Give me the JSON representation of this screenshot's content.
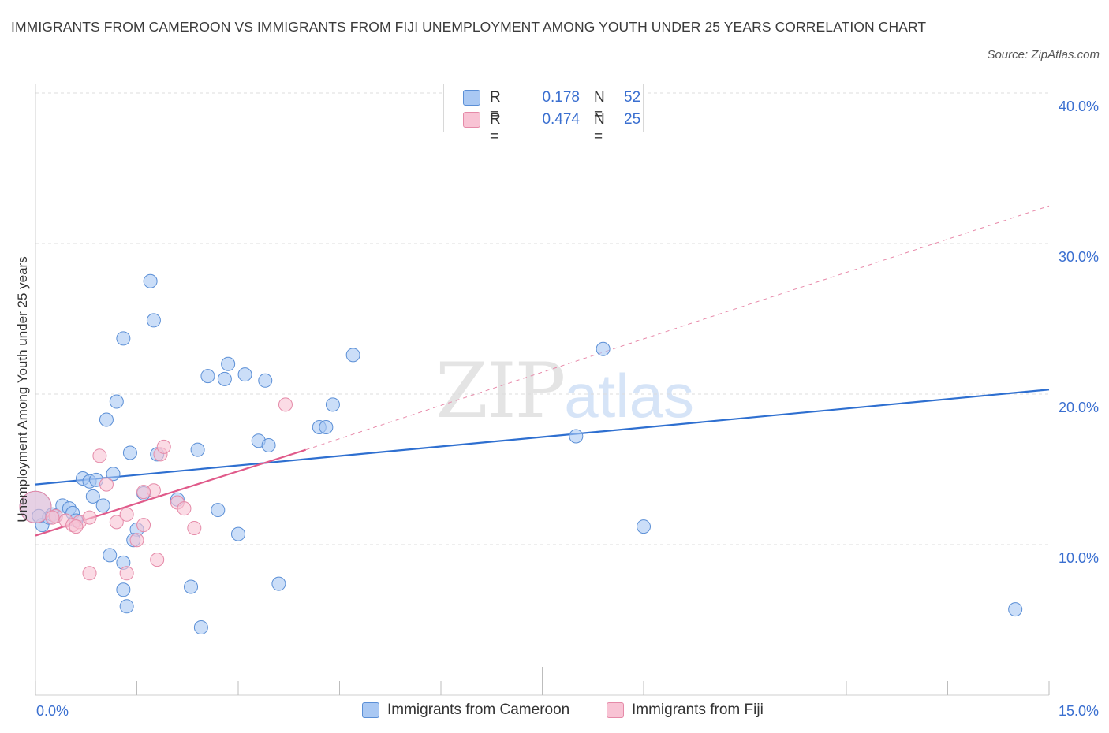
{
  "title": "IMMIGRANTS FROM CAMEROON VS IMMIGRANTS FROM FIJI UNEMPLOYMENT AMONG YOUTH UNDER 25 YEARS CORRELATION CHART",
  "source": "Source: ZipAtlas.com",
  "watermark": {
    "zip": "ZIP",
    "atlas": "atlas"
  },
  "legend": {
    "rows": [
      {
        "r_label": "R =",
        "r_value": "0.178",
        "n_label": "N =",
        "n_value": "52",
        "color": "#a9c8f3",
        "border": "#5b8fd6"
      },
      {
        "r_label": "R =",
        "r_value": "0.474",
        "n_label": "N =",
        "n_value": "25",
        "color": "#f8c3d4",
        "border": "#e58aa8"
      }
    ]
  },
  "bottom_legend": [
    "Immigrants from Cameroon",
    "Immigrants from Fiji"
  ],
  "chart_data": {
    "type": "scatter",
    "title": "IMMIGRANTS FROM CAMEROON VS IMMIGRANTS FROM FIJI UNEMPLOYMENT AMONG YOUTH UNDER 25 YEARS CORRELATION CHART",
    "xlabel": "",
    "ylabel": "Unemployment Among Youth under 25 years",
    "xlim": [
      0,
      15
    ],
    "ylim": [
      0,
      40
    ],
    "x_tick_labels": [
      "0.0%",
      "15.0%"
    ],
    "y_tick_labels": [
      "10.0%",
      "20.0%",
      "30.0%",
      "40.0%"
    ],
    "y_ticks": [
      10,
      20,
      30,
      40
    ],
    "grid": true,
    "series": [
      {
        "name": "Immigrants from Cameroon",
        "color": "#a9c8f3",
        "stroke": "#5b8fd6",
        "trend": {
          "x": [
            0,
            15
          ],
          "y": [
            14.0,
            20.3
          ],
          "color": "#2e6fd0"
        },
        "points": [
          [
            0.0,
            12.5
          ],
          [
            0.1,
            11.3
          ],
          [
            0.2,
            11.8
          ],
          [
            0.25,
            12.0
          ],
          [
            0.3,
            11.9
          ],
          [
            0.4,
            12.6
          ],
          [
            0.5,
            12.4
          ],
          [
            0.55,
            12.1
          ],
          [
            0.6,
            11.6
          ],
          [
            0.7,
            14.4
          ],
          [
            0.8,
            14.2
          ],
          [
            0.85,
            13.2
          ],
          [
            0.9,
            14.3
          ],
          [
            1.0,
            12.6
          ],
          [
            1.05,
            18.3
          ],
          [
            1.15,
            14.7
          ],
          [
            1.2,
            19.5
          ],
          [
            1.3,
            23.7
          ],
          [
            1.4,
            16.1
          ],
          [
            1.5,
            11.0
          ],
          [
            1.6,
            13.4
          ],
          [
            1.7,
            27.5
          ],
          [
            1.75,
            24.9
          ],
          [
            1.8,
            16.0
          ],
          [
            2.1,
            13.0
          ],
          [
            2.4,
            16.3
          ],
          [
            2.55,
            21.2
          ],
          [
            2.7,
            12.3
          ],
          [
            2.8,
            21.0
          ],
          [
            2.85,
            22.0
          ],
          [
            3.0,
            10.7
          ],
          [
            3.1,
            21.3
          ],
          [
            3.3,
            16.9
          ],
          [
            3.4,
            20.9
          ],
          [
            3.45,
            16.6
          ],
          [
            4.2,
            17.8
          ],
          [
            4.3,
            17.8
          ],
          [
            4.4,
            19.3
          ],
          [
            4.7,
            22.6
          ],
          [
            8.0,
            17.2
          ],
          [
            8.4,
            23.0
          ],
          [
            9.0,
            11.2
          ],
          [
            1.1,
            9.3
          ],
          [
            1.3,
            8.8
          ],
          [
            1.45,
            10.3
          ],
          [
            1.3,
            7.0
          ],
          [
            1.35,
            5.9
          ],
          [
            2.3,
            7.2
          ],
          [
            2.45,
            4.5
          ],
          [
            3.6,
            7.4
          ],
          [
            14.5,
            5.7
          ],
          [
            0.05,
            11.9
          ]
        ]
      },
      {
        "name": "Immigrants from Fiji",
        "color": "#f8c3d4",
        "stroke": "#e58aa8",
        "trend": {
          "x": [
            0,
            4.0
          ],
          "y": [
            10.6,
            16.3
          ],
          "color": "#e05a8a"
        },
        "trend_extension": {
          "x": [
            4.0,
            15
          ],
          "y": [
            16.3,
            32.5
          ]
        },
        "points": [
          [
            0.0,
            12.5
          ],
          [
            0.3,
            11.9
          ],
          [
            0.45,
            11.6
          ],
          [
            0.55,
            11.3
          ],
          [
            0.65,
            11.5
          ],
          [
            0.8,
            11.8
          ],
          [
            0.95,
            15.9
          ],
          [
            1.05,
            14.0
          ],
          [
            1.2,
            11.5
          ],
          [
            1.35,
            12.0
          ],
          [
            1.5,
            10.3
          ],
          [
            1.6,
            11.3
          ],
          [
            1.75,
            13.6
          ],
          [
            1.8,
            9.0
          ],
          [
            1.85,
            16.0
          ],
          [
            1.9,
            16.5
          ],
          [
            2.1,
            12.8
          ],
          [
            2.2,
            12.4
          ],
          [
            2.35,
            11.1
          ],
          [
            3.7,
            19.3
          ],
          [
            1.35,
            8.1
          ],
          [
            0.8,
            8.1
          ],
          [
            0.6,
            11.2
          ],
          [
            1.6,
            13.5
          ],
          [
            0.25,
            11.8
          ]
        ]
      }
    ]
  }
}
